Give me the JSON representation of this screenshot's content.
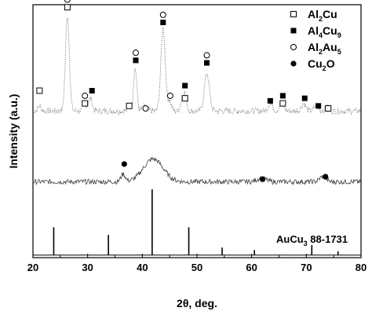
{
  "chart_data": {
    "type": "line",
    "title": "",
    "xlabel": "2θ, deg.",
    "ylabel": "Intensity (a.u.)",
    "xlim": [
      20,
      80
    ],
    "ylim": [
      0,
      100
    ],
    "x_ticks": [
      20,
      30,
      40,
      50,
      60,
      70,
      80
    ],
    "y_ticks_shown": false,
    "grid": false,
    "legend_position": "top-right",
    "legend": [
      {
        "marker": "open-square",
        "label": "Al2Cu",
        "label_main": "Al",
        "sub1": "2",
        "label_mid": "Cu",
        "sub2": ""
      },
      {
        "marker": "filled-square",
        "label": "Al4Cu9",
        "label_main": "Al",
        "sub1": "4",
        "label_mid": "Cu",
        "sub2": "9"
      },
      {
        "marker": "open-circle",
        "label": "Al2Au5",
        "label_main": "Al",
        "sub1": "2",
        "label_mid": "Au",
        "sub2": "5"
      },
      {
        "marker": "filled-circle",
        "label": "Cu2O",
        "label_main": "Cu",
        "sub1": "2",
        "label_mid": "O",
        "sub2": ""
      }
    ],
    "series": [
      {
        "style": "dotted",
        "baseline": 58,
        "noise": 1.2,
        "peaks": [
          {
            "x": 21.2,
            "h": 2,
            "w": 0.3
          },
          {
            "x": 26.3,
            "h": 38,
            "w": 0.35
          },
          {
            "x": 29.5,
            "h": 3,
            "w": 0.3
          },
          {
            "x": 30.5,
            "h": 5,
            "w": 0.35
          },
          {
            "x": 37.6,
            "h": 2,
            "w": 0.3
          },
          {
            "x": 38.7,
            "h": 17,
            "w": 0.3
          },
          {
            "x": 40.5,
            "h": 2,
            "w": 0.4
          },
          {
            "x": 43.8,
            "h": 33,
            "w": 0.4
          },
          {
            "x": 45.0,
            "h": 4,
            "w": 0.3
          },
          {
            "x": 47.3,
            "h": 4,
            "w": 0.3
          },
          {
            "x": 47.8,
            "h": 6,
            "w": 0.3
          },
          {
            "x": 51.8,
            "h": 15,
            "w": 0.45
          },
          {
            "x": 63.4,
            "h": 3,
            "w": 0.4
          },
          {
            "x": 65.5,
            "h": 3,
            "w": 0.4
          },
          {
            "x": 69.5,
            "h": 3,
            "w": 0.4
          },
          {
            "x": 71.8,
            "h": 2,
            "w": 0.4
          },
          {
            "x": 73.8,
            "h": 1.5,
            "w": 0.4
          }
        ]
      },
      {
        "style": "solid",
        "baseline": 30,
        "noise": 1.0,
        "peaks": [
          {
            "x": 36.5,
            "h": 3,
            "w": 0.4
          },
          {
            "x": 42.0,
            "h": 9,
            "w": 1.8
          },
          {
            "x": 61.8,
            "h": 1.5,
            "w": 0.8
          },
          {
            "x": 73.0,
            "h": 2,
            "w": 0.6
          }
        ]
      }
    ],
    "reference_pattern": {
      "label": "AuCu3 88-1731",
      "label_main": "AuCu",
      "label_sub": "3",
      "label_rest": " 88-1731",
      "baseline": 1,
      "sticks": [
        {
          "x": 23.8,
          "h": 11
        },
        {
          "x": 33.8,
          "h": 8
        },
        {
          "x": 41.8,
          "h": 26
        },
        {
          "x": 48.5,
          "h": 11
        },
        {
          "x": 54.6,
          "h": 3
        },
        {
          "x": 60.5,
          "h": 2
        },
        {
          "x": 71.0,
          "h": 4
        },
        {
          "x": 75.8,
          "h": 1.5
        }
      ]
    },
    "markers": [
      {
        "phase": "Al2Cu",
        "marker": "open-square",
        "x": 21.2,
        "y": 66
      },
      {
        "phase": "Al2Cu",
        "marker": "open-square",
        "x": 26.3,
        "y": 99
      },
      {
        "phase": "Al2Au5",
        "marker": "open-circle",
        "x": 26.3,
        "y": 102
      },
      {
        "phase": "Al2Au5",
        "marker": "open-circle",
        "x": 29.5,
        "y": 64
      },
      {
        "phase": "Al2Cu",
        "marker": "open-square",
        "x": 29.5,
        "y": 61
      },
      {
        "phase": "Al4Cu9",
        "marker": "filled-square",
        "x": 30.8,
        "y": 66
      },
      {
        "phase": "Al2Cu",
        "marker": "open-square",
        "x": 37.6,
        "y": 60
      },
      {
        "phase": "Al4Cu9",
        "marker": "filled-square",
        "x": 38.8,
        "y": 78
      },
      {
        "phase": "Al2Au5",
        "marker": "open-circle",
        "x": 38.8,
        "y": 81
      },
      {
        "phase": "Al2Au5",
        "marker": "open-circle",
        "x": 40.6,
        "y": 59
      },
      {
        "phase": "Al4Cu9",
        "marker": "filled-square",
        "x": 43.8,
        "y": 93
      },
      {
        "phase": "Al2Au5",
        "marker": "open-circle",
        "x": 43.8,
        "y": 96
      },
      {
        "phase": "Al2Au5",
        "marker": "open-circle",
        "x": 45.1,
        "y": 64
      },
      {
        "phase": "Al2Cu",
        "marker": "open-square",
        "x": 47.8,
        "y": 63
      },
      {
        "phase": "Al4Cu9",
        "marker": "filled-square",
        "x": 47.8,
        "y": 68
      },
      {
        "phase": "Al4Cu9",
        "marker": "filled-square",
        "x": 51.8,
        "y": 77
      },
      {
        "phase": "Al2Au5",
        "marker": "open-circle",
        "x": 51.8,
        "y": 80
      },
      {
        "phase": "Al4Cu9",
        "marker": "filled-square",
        "x": 63.4,
        "y": 62
      },
      {
        "phase": "Al2Cu",
        "marker": "open-square",
        "x": 65.7,
        "y": 61
      },
      {
        "phase": "Al4Cu9",
        "marker": "filled-square",
        "x": 65.7,
        "y": 64
      },
      {
        "phase": "Al4Cu9",
        "marker": "filled-square",
        "x": 69.7,
        "y": 63
      },
      {
        "phase": "Al4Cu9",
        "marker": "filled-square",
        "x": 72.2,
        "y": 60
      },
      {
        "phase": "Al2Cu",
        "marker": "open-square",
        "x": 74.0,
        "y": 59
      },
      {
        "phase": "Cu2O",
        "marker": "filled-circle",
        "x": 36.7,
        "y": 37
      },
      {
        "phase": "Cu2O",
        "marker": "filled-circle",
        "x": 62.0,
        "y": 31
      },
      {
        "phase": "Cu2O",
        "marker": "filled-circle",
        "x": 73.5,
        "y": 32
      }
    ]
  }
}
